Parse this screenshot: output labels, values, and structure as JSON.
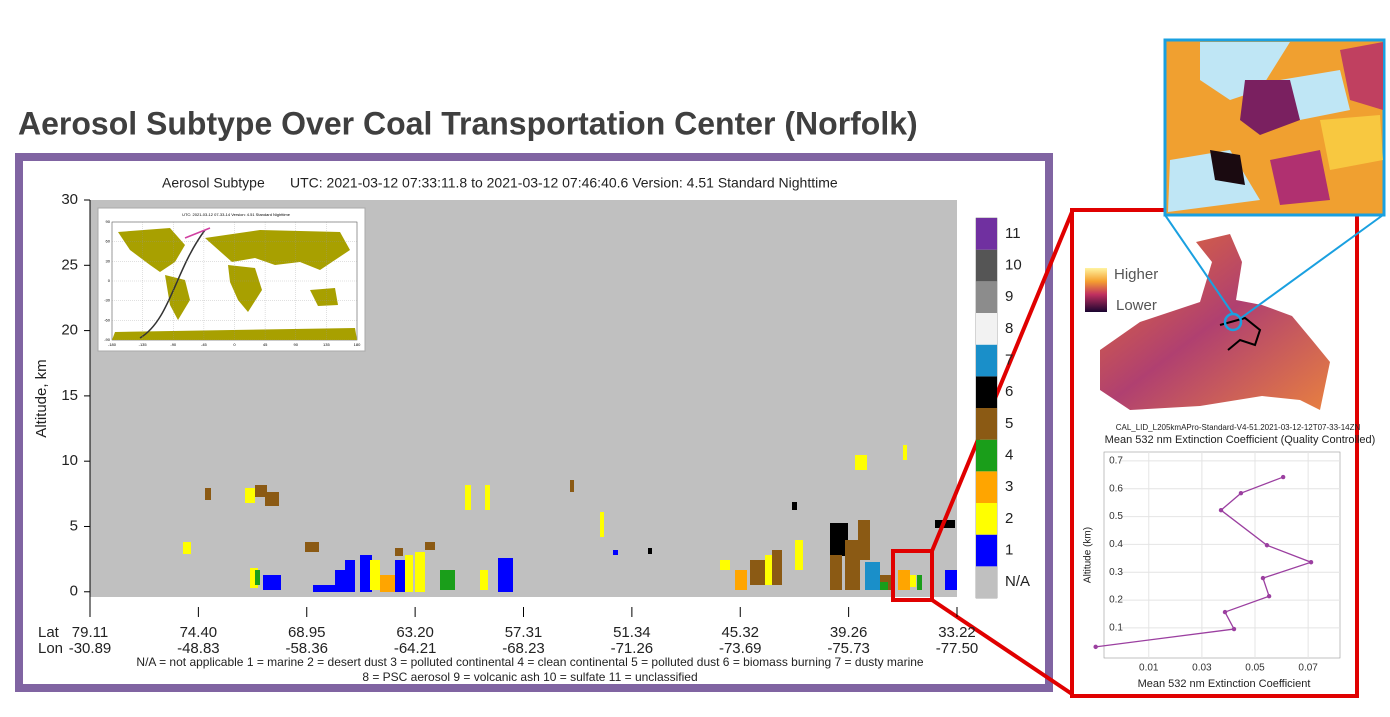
{
  "title": "Aerosol Subtype Over Coal Transportation Center (Norfolk)",
  "chart_data": [
    {
      "type": "curtain",
      "title": "Aerosol Subtype",
      "subtitle": "UTC: 2021-03-12    07:33:11.8 to 2021-03-12 07:46:40.6   Version: 4.51 Standard Nighttime",
      "y_label": "Altitude, km",
      "ylim": [
        -0.4,
        30
      ],
      "yticks": [
        0,
        5,
        10,
        15,
        20,
        25,
        30
      ],
      "lat_label": "Lat",
      "lon_label": "Lon",
      "lat": [
        "79.11",
        "74.40",
        "68.95",
        "63.20",
        "57.31",
        "51.34",
        "45.32",
        "39.26",
        "33.22"
      ],
      "lon": [
        "-30.89",
        "-48.83",
        "-58.36",
        "-64.21",
        "-68.23",
        "-71.26",
        "-73.69",
        "-75.73",
        "-77.50"
      ],
      "colorbar": {
        "labels": [
          "N/A",
          "1",
          "2",
          "3",
          "4",
          "5",
          "6",
          "7",
          "8",
          "9",
          "10",
          "11"
        ],
        "colors": [
          "#c0c0c0",
          "#0000ff",
          "#ffff00",
          "#ffa500",
          "#1a9e1a",
          "#8b5a14",
          "#000000",
          "#1a8fc9",
          "#f2f2f2",
          "#8c8c8c",
          "#555555",
          "#7030a0"
        ]
      },
      "legend": [
        "N/A = not applicable   1 = marine   2 = desert dust   3 = polluted continental   4 = clean continental   5 = polluted dust   6 = biomass burning   7 = dusty marine",
        "8 = PSC aerosol     9 = volcanic ash     10 = sulfate     11 = unclassified"
      ],
      "inset": {
        "title": "UTC: 2021-03-12  07-33-14    Version: 4.51  Standard    Nighttime",
        "lon_ticks": [
          -180,
          -135,
          -90,
          -45,
          0,
          45,
          90,
          135,
          180
        ],
        "lat_ticks": [
          90,
          60,
          30,
          0,
          -30,
          -60,
          -90
        ]
      }
    },
    {
      "type": "line",
      "title": "CAL_LID_L205kmAPro-Standard-V4-51.2021-03-12-12T07-33-14ZN",
      "subtitle": "Mean 532 nm Extinction Coefficient (Quality Controlled)",
      "x_label": "Mean 532 nm Extinction Coefficient",
      "y_label": "Altitude (km)",
      "color": "#9b3fa0",
      "grid": true,
      "xlim": [
        -0.011,
        0.082
      ],
      "xticks": [
        0.01,
        0.03,
        0.05,
        0.07
      ],
      "ylim": [
        -0.008,
        0.732
      ],
      "yticks": [
        0.1,
        0.2,
        0.3,
        0.4,
        0.5,
        0.6,
        0.7
      ],
      "x": [
        -0.01,
        0.0421,
        0.0387,
        0.0553,
        0.053,
        0.0711,
        0.0545,
        0.0372,
        0.0447,
        0.0606
      ],
      "values": [
        0.032,
        0.096,
        0.157,
        0.214,
        0.279,
        0.336,
        0.397,
        0.523,
        0.584,
        0.642
      ]
    }
  ],
  "map_legend": {
    "high": "Higher",
    "low": "Lower"
  }
}
